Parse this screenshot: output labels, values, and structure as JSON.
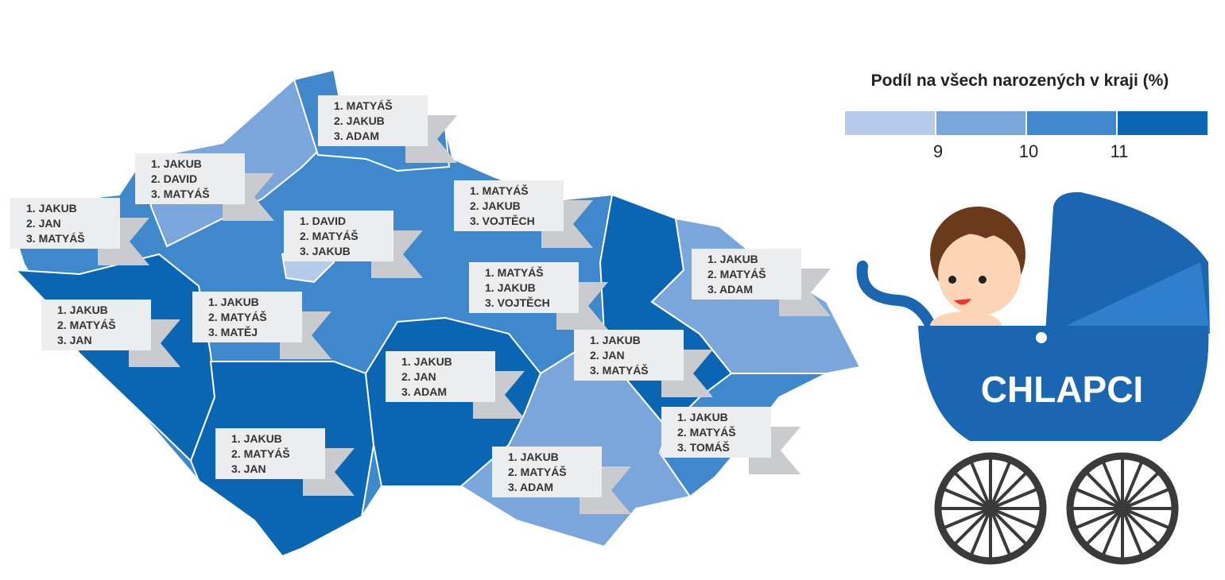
{
  "legend": {
    "title": "Podíl na všech narozených v kraji (%)",
    "ticks": [
      9,
      10,
      11
    ],
    "colors": [
      "#b6cbeb",
      "#7ba6dc",
      "#3f88cc",
      "#0a66b3"
    ]
  },
  "regions": [
    {
      "lines": [
        "1. MATYÁŠ",
        "2. JAKUB",
        "3. ADAM"
      ]
    },
    {
      "lines": [
        "1. JAKUB",
        "2. DAVID",
        "3. MATYÁŠ"
      ]
    },
    {
      "lines": [
        "1. JAKUB",
        "2. JAN",
        "3. MATYÁŠ"
      ]
    },
    {
      "lines": [
        "1. DAVID",
        "2. MATYÁŠ",
        "3. JAKUB"
      ]
    },
    {
      "lines": [
        "1. MATYÁŠ",
        "2. JAKUB",
        "3. VOJTĚCH"
      ]
    },
    {
      "lines": [
        "1. MATYÁŠ",
        "1. JAKUB",
        "3. VOJTĚCH"
      ]
    },
    {
      "lines": [
        "1. JAKUB",
        "2. MATYÁŠ",
        "3. ADAM"
      ]
    },
    {
      "lines": [
        "1. JAKUB",
        "2. MATYÁŠ",
        "3. JAN"
      ]
    },
    {
      "lines": [
        "1. JAKUB",
        "2. MATYÁŠ",
        "3. MATĚJ"
      ]
    },
    {
      "lines": [
        "1. JAKUB",
        "2. JAN",
        "3. MATYÁŠ"
      ]
    },
    {
      "lines": [
        "1. JAKUB",
        "2. JAN",
        "3. ADAM"
      ]
    },
    {
      "lines": [
        "1. JAKUB",
        "2. MATYÁŠ",
        "3. TOMÁŠ"
      ]
    },
    {
      "lines": [
        "1. JAKUB",
        "2. MATYÁŠ",
        "3. JAN"
      ]
    },
    {
      "lines": [
        "1. JAKUB",
        "2. MATYÁŠ",
        "3. ADAM"
      ]
    }
  ],
  "stroller_label": "CHLAPCI"
}
